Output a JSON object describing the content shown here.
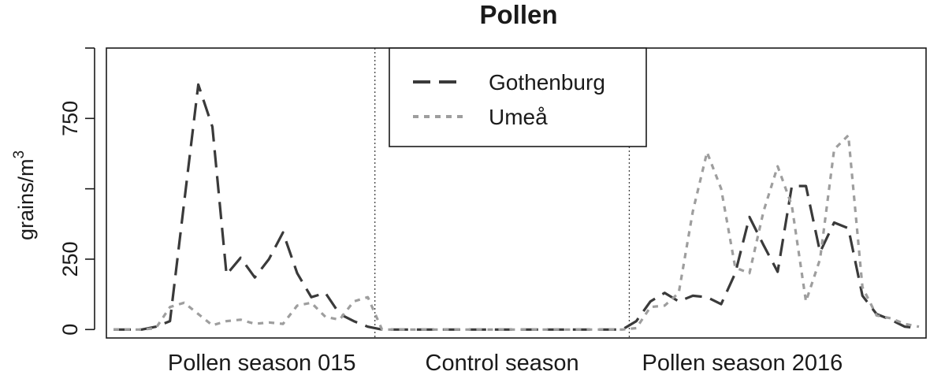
{
  "chart_data": {
    "type": "line",
    "title": "Pollen",
    "ylabel": "grains/m",
    "ylabel_superscript": "3",
    "ylim": [
      -30,
      1000
    ],
    "yticks": [
      0,
      250,
      500,
      750,
      1000
    ],
    "ytick_labels": [
      "0",
      "250",
      "",
      "750",
      ""
    ],
    "xlim": [
      -0.5,
      57.5
    ],
    "x_groups": [
      {
        "label": "Pollen season 015",
        "center": 10.5
      },
      {
        "label": "Control season",
        "center": 27.5
      },
      {
        "label": "Pollen season 2016",
        "center": 44.5
      }
    ],
    "section_dividers": [
      18.5,
      36.5
    ],
    "legend": {
      "position": "top-center",
      "entries": [
        {
          "label": "Gothenburg",
          "color": "#3a3a3a",
          "style": "dashed"
        },
        {
          "label": "Umeå",
          "color": "#9e9e9e",
          "style": "dotted"
        }
      ]
    },
    "series": [
      {
        "name": "Gothenburg",
        "color": "#3a3a3a",
        "dash": "22,11",
        "points": [
          [
            0,
            0
          ],
          [
            1,
            0
          ],
          [
            2,
            0
          ],
          [
            3,
            10
          ],
          [
            4,
            30
          ],
          [
            5,
            450
          ],
          [
            6,
            870
          ],
          [
            7,
            720
          ],
          [
            8,
            195
          ],
          [
            9,
            255
          ],
          [
            10,
            185
          ],
          [
            11,
            250
          ],
          [
            12,
            345
          ],
          [
            13,
            200
          ],
          [
            14,
            115
          ],
          [
            15,
            130
          ],
          [
            16,
            55
          ],
          [
            17,
            30
          ],
          [
            18,
            10
          ],
          [
            19,
            0
          ],
          [
            20,
            0
          ],
          [
            21,
            0
          ],
          [
            22,
            0
          ],
          [
            23,
            0
          ],
          [
            24,
            0
          ],
          [
            25,
            0
          ],
          [
            26,
            0
          ],
          [
            27,
            0
          ],
          [
            28,
            0
          ],
          [
            29,
            0
          ],
          [
            30,
            0
          ],
          [
            31,
            0
          ],
          [
            32,
            0
          ],
          [
            33,
            0
          ],
          [
            34,
            0
          ],
          [
            35,
            0
          ],
          [
            36,
            0
          ],
          [
            37,
            30
          ],
          [
            38,
            100
          ],
          [
            39,
            130
          ],
          [
            40,
            100
          ],
          [
            41,
            120
          ],
          [
            42,
            115
          ],
          [
            43,
            90
          ],
          [
            44,
            200
          ],
          [
            45,
            400
          ],
          [
            46,
            300
          ],
          [
            47,
            205
          ],
          [
            48,
            510
          ],
          [
            49,
            510
          ],
          [
            50,
            275
          ],
          [
            51,
            380
          ],
          [
            52,
            360
          ],
          [
            53,
            120
          ],
          [
            54,
            55
          ],
          [
            55,
            35
          ],
          [
            56,
            10
          ],
          [
            57,
            5
          ]
        ]
      },
      {
        "name": "Umeå",
        "color": "#9e9e9e",
        "dash": "7,7",
        "points": [
          [
            0,
            0
          ],
          [
            1,
            0
          ],
          [
            2,
            0
          ],
          [
            3,
            5
          ],
          [
            4,
            80
          ],
          [
            5,
            95
          ],
          [
            6,
            55
          ],
          [
            7,
            15
          ],
          [
            8,
            30
          ],
          [
            9,
            35
          ],
          [
            10,
            20
          ],
          [
            11,
            25
          ],
          [
            12,
            20
          ],
          [
            13,
            85
          ],
          [
            14,
            95
          ],
          [
            15,
            45
          ],
          [
            16,
            35
          ],
          [
            17,
            100
          ],
          [
            18,
            115
          ],
          [
            19,
            0
          ],
          [
            20,
            0
          ],
          [
            21,
            0
          ],
          [
            22,
            0
          ],
          [
            23,
            0
          ],
          [
            24,
            0
          ],
          [
            25,
            0
          ],
          [
            26,
            0
          ],
          [
            27,
            0
          ],
          [
            28,
            0
          ],
          [
            29,
            0
          ],
          [
            30,
            0
          ],
          [
            31,
            0
          ],
          [
            32,
            0
          ],
          [
            33,
            0
          ],
          [
            34,
            0
          ],
          [
            35,
            0
          ],
          [
            36,
            0
          ],
          [
            37,
            5
          ],
          [
            38,
            80
          ],
          [
            39,
            85
          ],
          [
            40,
            130
          ],
          [
            41,
            420
          ],
          [
            42,
            630
          ],
          [
            43,
            500
          ],
          [
            44,
            220
          ],
          [
            45,
            200
          ],
          [
            46,
            420
          ],
          [
            47,
            580
          ],
          [
            48,
            440
          ],
          [
            49,
            100
          ],
          [
            50,
            250
          ],
          [
            51,
            640
          ],
          [
            52,
            690
          ],
          [
            53,
            150
          ],
          [
            54,
            50
          ],
          [
            55,
            40
          ],
          [
            56,
            20
          ],
          [
            57,
            10
          ]
        ]
      }
    ]
  }
}
